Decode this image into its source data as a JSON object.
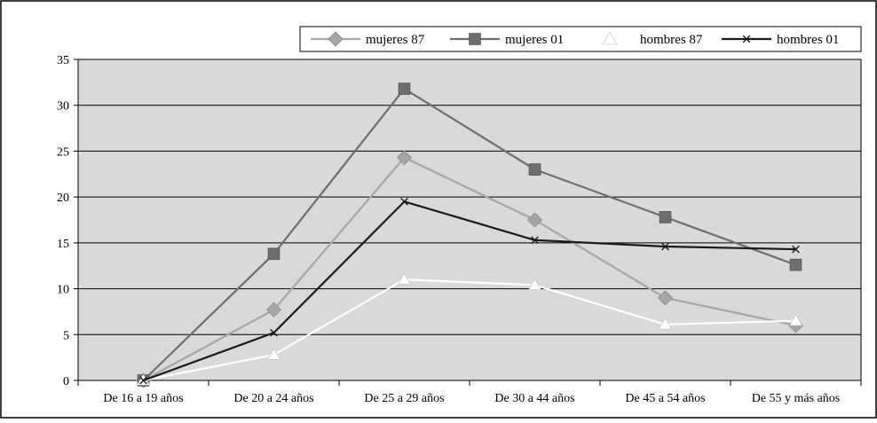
{
  "chart_data": {
    "type": "line",
    "title": "",
    "xlabel": "",
    "ylabel": "",
    "categories": [
      "De 16 a 19 años",
      "De 20 a 24 años",
      "De 25 a 29 años",
      "De 30 a 44 años",
      "De 45 a 54 años",
      "De 55 y más años"
    ],
    "ylim": [
      0,
      35
    ],
    "yticks": [
      0,
      5,
      10,
      15,
      20,
      25,
      30,
      35
    ],
    "grid": true,
    "legend_position": "top-right",
    "series": [
      {
        "name": "mujeres 87",
        "values": [
          0,
          7.7,
          24.3,
          17.5,
          9.0,
          6.0
        ],
        "color": "#a6a6a6",
        "marker": "diamond"
      },
      {
        "name": "mujeres 01",
        "values": [
          0,
          13.8,
          31.8,
          23.0,
          17.8,
          12.6
        ],
        "color": "#6e6e6e",
        "marker": "square"
      },
      {
        "name": "hombres 87",
        "values": [
          0,
          2.8,
          11.0,
          10.4,
          6.1,
          6.5
        ],
        "color": "#ffffff",
        "marker": "triangle"
      },
      {
        "name": "hombres 01",
        "values": [
          0,
          5.2,
          19.5,
          15.3,
          14.6,
          14.3
        ],
        "color": "#1a1a1a",
        "marker": "x"
      }
    ]
  }
}
